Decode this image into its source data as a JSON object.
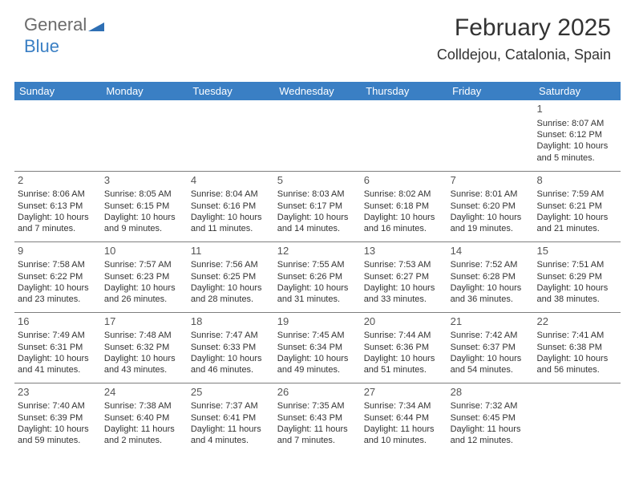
{
  "logo": {
    "text1": "General",
    "text2": "Blue"
  },
  "header": {
    "month_title": "February 2025",
    "location": "Colldejou, Catalonia, Spain"
  },
  "calendar": {
    "day_headers": [
      "Sunday",
      "Monday",
      "Tuesday",
      "Wednesday",
      "Thursday",
      "Friday",
      "Saturday"
    ],
    "header_bg": "#3a7fc4",
    "header_fg": "#ffffff",
    "border_color": "#7f7f7f",
    "font_size_body": 11,
    "font_size_daynum": 13,
    "weeks": [
      [
        null,
        null,
        null,
        null,
        null,
        null,
        {
          "d": "1",
          "sr": "8:07 AM",
          "ss": "6:12 PM",
          "dl": "10 hours and 5 minutes."
        }
      ],
      [
        {
          "d": "2",
          "sr": "8:06 AM",
          "ss": "6:13 PM",
          "dl": "10 hours and 7 minutes."
        },
        {
          "d": "3",
          "sr": "8:05 AM",
          "ss": "6:15 PM",
          "dl": "10 hours and 9 minutes."
        },
        {
          "d": "4",
          "sr": "8:04 AM",
          "ss": "6:16 PM",
          "dl": "10 hours and 11 minutes."
        },
        {
          "d": "5",
          "sr": "8:03 AM",
          "ss": "6:17 PM",
          "dl": "10 hours and 14 minutes."
        },
        {
          "d": "6",
          "sr": "8:02 AM",
          "ss": "6:18 PM",
          "dl": "10 hours and 16 minutes."
        },
        {
          "d": "7",
          "sr": "8:01 AM",
          "ss": "6:20 PM",
          "dl": "10 hours and 19 minutes."
        },
        {
          "d": "8",
          "sr": "7:59 AM",
          "ss": "6:21 PM",
          "dl": "10 hours and 21 minutes."
        }
      ],
      [
        {
          "d": "9",
          "sr": "7:58 AM",
          "ss": "6:22 PM",
          "dl": "10 hours and 23 minutes."
        },
        {
          "d": "10",
          "sr": "7:57 AM",
          "ss": "6:23 PM",
          "dl": "10 hours and 26 minutes."
        },
        {
          "d": "11",
          "sr": "7:56 AM",
          "ss": "6:25 PM",
          "dl": "10 hours and 28 minutes."
        },
        {
          "d": "12",
          "sr": "7:55 AM",
          "ss": "6:26 PM",
          "dl": "10 hours and 31 minutes."
        },
        {
          "d": "13",
          "sr": "7:53 AM",
          "ss": "6:27 PM",
          "dl": "10 hours and 33 minutes."
        },
        {
          "d": "14",
          "sr": "7:52 AM",
          "ss": "6:28 PM",
          "dl": "10 hours and 36 minutes."
        },
        {
          "d": "15",
          "sr": "7:51 AM",
          "ss": "6:29 PM",
          "dl": "10 hours and 38 minutes."
        }
      ],
      [
        {
          "d": "16",
          "sr": "7:49 AM",
          "ss": "6:31 PM",
          "dl": "10 hours and 41 minutes."
        },
        {
          "d": "17",
          "sr": "7:48 AM",
          "ss": "6:32 PM",
          "dl": "10 hours and 43 minutes."
        },
        {
          "d": "18",
          "sr": "7:47 AM",
          "ss": "6:33 PM",
          "dl": "10 hours and 46 minutes."
        },
        {
          "d": "19",
          "sr": "7:45 AM",
          "ss": "6:34 PM",
          "dl": "10 hours and 49 minutes."
        },
        {
          "d": "20",
          "sr": "7:44 AM",
          "ss": "6:36 PM",
          "dl": "10 hours and 51 minutes."
        },
        {
          "d": "21",
          "sr": "7:42 AM",
          "ss": "6:37 PM",
          "dl": "10 hours and 54 minutes."
        },
        {
          "d": "22",
          "sr": "7:41 AM",
          "ss": "6:38 PM",
          "dl": "10 hours and 56 minutes."
        }
      ],
      [
        {
          "d": "23",
          "sr": "7:40 AM",
          "ss": "6:39 PM",
          "dl": "10 hours and 59 minutes."
        },
        {
          "d": "24",
          "sr": "7:38 AM",
          "ss": "6:40 PM",
          "dl": "11 hours and 2 minutes."
        },
        {
          "d": "25",
          "sr": "7:37 AM",
          "ss": "6:41 PM",
          "dl": "11 hours and 4 minutes."
        },
        {
          "d": "26",
          "sr": "7:35 AM",
          "ss": "6:43 PM",
          "dl": "11 hours and 7 minutes."
        },
        {
          "d": "27",
          "sr": "7:34 AM",
          "ss": "6:44 PM",
          "dl": "11 hours and 10 minutes."
        },
        {
          "d": "28",
          "sr": "7:32 AM",
          "ss": "6:45 PM",
          "dl": "11 hours and 12 minutes."
        },
        null
      ]
    ]
  },
  "labels": {
    "sunrise": "Sunrise:",
    "sunset": "Sunset:",
    "daylight": "Daylight:"
  }
}
